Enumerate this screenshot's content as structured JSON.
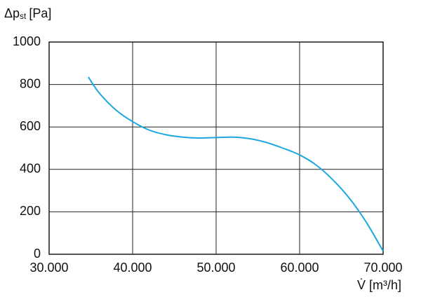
{
  "chart_data": {
    "type": "line",
    "y_label": {
      "main": "Δp",
      "sub": "st",
      "unit": "[Pa]"
    },
    "x_label": "V̇ [m³/h]",
    "x": [
      34700,
      36000,
      38000,
      40000,
      42000,
      44000,
      46000,
      48000,
      50000,
      52000,
      54000,
      56000,
      58000,
      60000,
      62000,
      64000,
      66000,
      68000,
      70000
    ],
    "series": [
      {
        "color": "#1ca7e0",
        "values": [
          835,
          760,
          680,
          625,
          585,
          563,
          552,
          548,
          550,
          552,
          545,
          527,
          500,
          468,
          420,
          350,
          262,
          150,
          15
        ]
      }
    ],
    "xlim": [
      30000,
      70000
    ],
    "xticks": [
      {
        "value": 30000,
        "label": "30.000"
      },
      {
        "value": 40000,
        "label": "40.000"
      },
      {
        "value": 50000,
        "label": "50.000"
      },
      {
        "value": 60000,
        "label": "60.000"
      },
      {
        "value": 70000,
        "label": "70.000"
      }
    ],
    "ylim": [
      0,
      1000
    ],
    "yticks": [
      0,
      200,
      400,
      600,
      800,
      1000
    ],
    "grid": true
  }
}
